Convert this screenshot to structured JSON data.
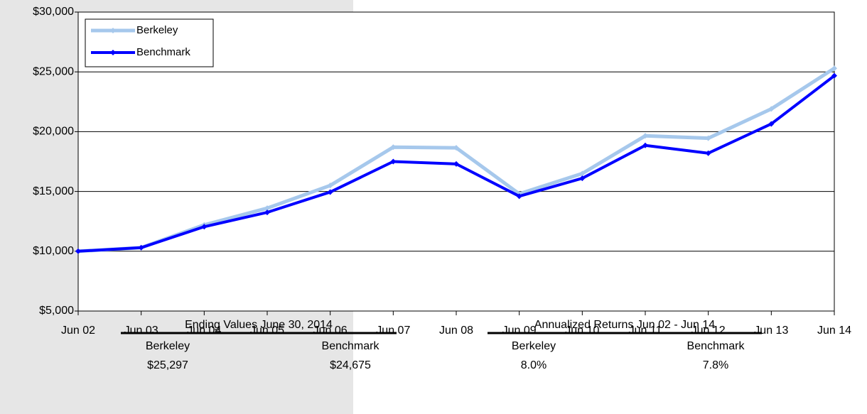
{
  "chart_data": {
    "type": "line",
    "categories": [
      "Jun 02",
      "Jun 03",
      "Jun 04",
      "Jun 05",
      "Jun 06",
      "Jun 07",
      "Jun 08",
      "Jun 09",
      "Jun 10",
      "Jun 11",
      "Jun 12",
      "Jun 13",
      "Jun 14"
    ],
    "series": [
      {
        "name": "Berkeley",
        "color": "#a6c8ec",
        "values": [
          10000,
          10300,
          12200,
          13600,
          15500,
          18700,
          18650,
          14800,
          16500,
          19650,
          19450,
          21900,
          25297
        ]
      },
      {
        "name": "Benchmark",
        "color": "#0000ff",
        "values": [
          10000,
          10300,
          12050,
          13250,
          14950,
          17500,
          17300,
          14600,
          16100,
          18850,
          18200,
          20650,
          24675
        ]
      }
    ],
    "ylim": [
      5000,
      30000
    ],
    "yticks": [
      {
        "value": 5000,
        "label": "$5,000"
      },
      {
        "value": 10000,
        "label": "$10,000"
      },
      {
        "value": 15000,
        "label": "$15,000"
      },
      {
        "value": 20000,
        "label": "$20,000"
      },
      {
        "value": 25000,
        "label": "$25,000"
      },
      {
        "value": 30000,
        "label": "$30,000"
      }
    ],
    "grid": true,
    "legend": "top-left",
    "summary": [
      {
        "title": "Ending Values June 30, 2014",
        "columns": [
          "Berkeley",
          "Benchmark"
        ],
        "values": [
          "$25,297",
          "$24,675"
        ]
      },
      {
        "title": "Annualized Returns Jun 02 - Jun 14",
        "columns": [
          "Berkeley",
          "Benchmark"
        ],
        "values": [
          "8.0%",
          "7.8%"
        ]
      }
    ]
  }
}
